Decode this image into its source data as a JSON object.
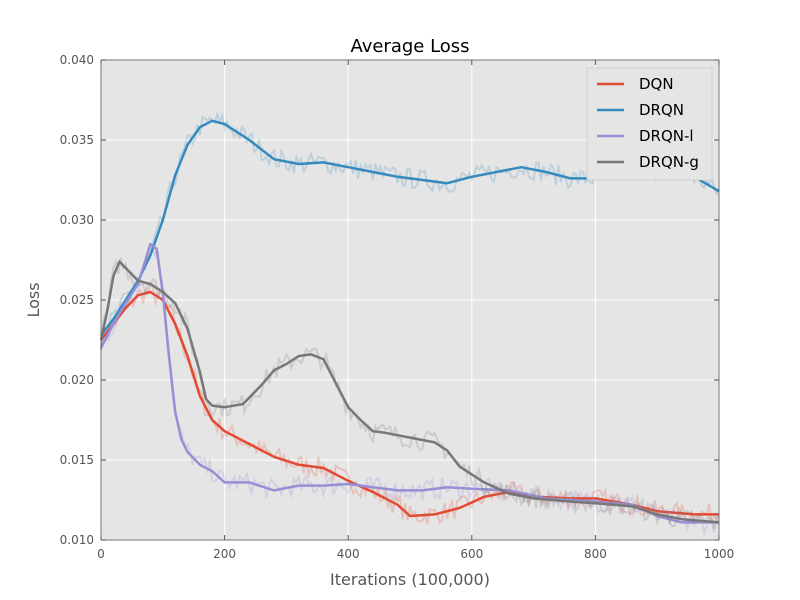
{
  "chart_data": {
    "type": "line",
    "title": "Average Loss",
    "xlabel": "Iterations (100,000)",
    "ylabel": "Loss",
    "xlim": [
      0,
      1000
    ],
    "ylim": [
      0.01,
      0.04
    ],
    "xticks": [
      0,
      200,
      400,
      600,
      800,
      1000
    ],
    "xtick_labels": [
      "0",
      "200",
      "400",
      "600",
      "800",
      "1000"
    ],
    "yticks": [
      0.01,
      0.015,
      0.02,
      0.025,
      0.03,
      0.035,
      0.04
    ],
    "ytick_labels": [
      "0.010",
      "0.015",
      "0.020",
      "0.025",
      "0.030",
      "0.035",
      "0.040"
    ],
    "grid": true,
    "legend_position": "top-right",
    "background": "#e5e5e5",
    "series": [
      {
        "name": "DQN",
        "color": "#e24a33",
        "x": [
          0,
          20,
          40,
          60,
          80,
          100,
          120,
          140,
          160,
          180,
          200,
          240,
          280,
          320,
          360,
          400,
          440,
          480,
          500,
          540,
          580,
          620,
          660,
          700,
          760,
          800,
          860,
          900,
          960,
          1000
        ],
        "values": [
          0.0225,
          0.0235,
          0.0245,
          0.0253,
          0.0255,
          0.025,
          0.0235,
          0.0215,
          0.019,
          0.0175,
          0.0168,
          0.016,
          0.0152,
          0.0147,
          0.0145,
          0.0137,
          0.013,
          0.0122,
          0.0115,
          0.0116,
          0.012,
          0.0127,
          0.013,
          0.0127,
          0.0126,
          0.0126,
          0.0122,
          0.0118,
          0.0116,
          0.0116
        ]
      },
      {
        "name": "DRQN",
        "color": "#348abd",
        "x": [
          0,
          20,
          40,
          60,
          80,
          100,
          120,
          140,
          160,
          180,
          200,
          240,
          280,
          320,
          360,
          400,
          440,
          480,
          520,
          560,
          600,
          640,
          680,
          720,
          760,
          800,
          840,
          880,
          920,
          960,
          1000
        ],
        "values": [
          0.0228,
          0.0238,
          0.025,
          0.0262,
          0.0278,
          0.03,
          0.0328,
          0.0347,
          0.0358,
          0.0362,
          0.036,
          0.035,
          0.0338,
          0.0335,
          0.0336,
          0.0333,
          0.033,
          0.0327,
          0.0325,
          0.0323,
          0.0327,
          0.033,
          0.0333,
          0.033,
          0.0326,
          0.0326,
          0.033,
          0.0332,
          0.033,
          0.0327,
          0.0318
        ]
      },
      {
        "name": "DRQN-l",
        "color": "#988ed5",
        "x": [
          0,
          20,
          40,
          60,
          80,
          90,
          100,
          110,
          120,
          130,
          140,
          160,
          180,
          200,
          240,
          280,
          320,
          360,
          400,
          440,
          480,
          520,
          560,
          600,
          660,
          720,
          800,
          860,
          900,
          940,
          1000
        ],
        "values": [
          0.022,
          0.0235,
          0.0248,
          0.026,
          0.0285,
          0.0282,
          0.0255,
          0.0215,
          0.018,
          0.0163,
          0.0155,
          0.0147,
          0.0143,
          0.0136,
          0.0136,
          0.0131,
          0.0134,
          0.0134,
          0.0135,
          0.0133,
          0.0131,
          0.0131,
          0.0133,
          0.0132,
          0.0131,
          0.0126,
          0.0124,
          0.0122,
          0.0115,
          0.0111,
          0.0111
        ]
      },
      {
        "name": "DRQN-g",
        "color": "#777777",
        "x": [
          0,
          10,
          20,
          30,
          40,
          60,
          80,
          100,
          120,
          140,
          160,
          170,
          180,
          200,
          230,
          260,
          280,
          300,
          320,
          340,
          360,
          380,
          400,
          420,
          440,
          460,
          500,
          540,
          560,
          580,
          620,
          660,
          700,
          760,
          800,
          860,
          900,
          940,
          1000
        ],
        "values": [
          0.0225,
          0.0243,
          0.0265,
          0.0274,
          0.027,
          0.0262,
          0.026,
          0.0255,
          0.0248,
          0.0232,
          0.0205,
          0.0188,
          0.0184,
          0.0183,
          0.0185,
          0.0197,
          0.0206,
          0.021,
          0.0215,
          0.0216,
          0.0213,
          0.0198,
          0.0183,
          0.0175,
          0.0168,
          0.0167,
          0.0164,
          0.0161,
          0.0156,
          0.0146,
          0.0136,
          0.0129,
          0.0126,
          0.0124,
          0.0123,
          0.0121,
          0.0116,
          0.0113,
          0.0111
        ]
      }
    ]
  }
}
